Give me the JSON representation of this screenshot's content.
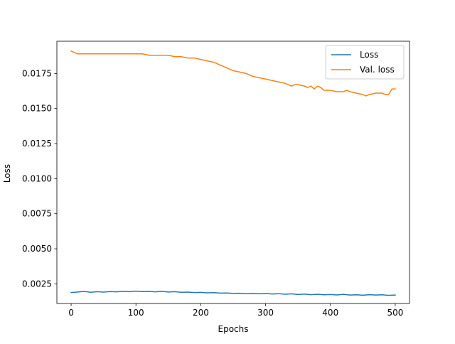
{
  "chart_data": {
    "type": "line",
    "title": "",
    "xlabel": "Epochs",
    "ylabel": "Loss",
    "xlim": [
      -22,
      522
    ],
    "ylim": [
      0.0011,
      0.0198
    ],
    "x_ticks": [
      0,
      100,
      200,
      300,
      400,
      500
    ],
    "x_tick_labels": [
      "0",
      "100",
      "200",
      "300",
      "400",
      "500"
    ],
    "y_ticks": [
      0.0025,
      0.005,
      0.0075,
      0.01,
      0.0125,
      0.015,
      0.0175
    ],
    "y_tick_labels": [
      "0.0025",
      "0.0050",
      "0.0075",
      "0.0100",
      "0.0125",
      "0.0150",
      "0.0175"
    ],
    "grid": false,
    "legend_position": "upper right",
    "series": [
      {
        "name": "Loss",
        "color": "#1f77b4",
        "x": [
          0,
          10,
          20,
          30,
          40,
          50,
          60,
          70,
          80,
          90,
          100,
          110,
          120,
          130,
          140,
          150,
          160,
          170,
          180,
          190,
          200,
          210,
          220,
          230,
          240,
          250,
          260,
          270,
          280,
          290,
          300,
          310,
          320,
          330,
          340,
          350,
          360,
          370,
          380,
          390,
          400,
          410,
          420,
          430,
          440,
          450,
          460,
          470,
          480,
          490,
          500
        ],
        "y": [
          0.00188,
          0.00192,
          0.00196,
          0.0019,
          0.00194,
          0.00191,
          0.00195,
          0.00193,
          0.00197,
          0.00194,
          0.00198,
          0.00195,
          0.00196,
          0.00193,
          0.00197,
          0.00192,
          0.00194,
          0.0019,
          0.00191,
          0.00188,
          0.00189,
          0.00186,
          0.00187,
          0.00184,
          0.00185,
          0.00182,
          0.00183,
          0.0018,
          0.00182,
          0.00179,
          0.00181,
          0.00178,
          0.0018,
          0.00176,
          0.00179,
          0.00174,
          0.00177,
          0.00173,
          0.00176,
          0.00172,
          0.00174,
          0.00171,
          0.00175,
          0.0017,
          0.00172,
          0.00169,
          0.00173,
          0.0017,
          0.00172,
          0.00168,
          0.0017
        ]
      },
      {
        "name": "Val. loss",
        "color": "#ff7f0e",
        "x": [
          0,
          5,
          10,
          20,
          30,
          40,
          50,
          60,
          70,
          80,
          90,
          100,
          110,
          120,
          130,
          140,
          150,
          160,
          170,
          180,
          190,
          200,
          210,
          220,
          230,
          240,
          250,
          260,
          270,
          280,
          290,
          300,
          310,
          320,
          330,
          335,
          340,
          345,
          350,
          360,
          365,
          370,
          375,
          380,
          385,
          390,
          400,
          410,
          420,
          425,
          430,
          440,
          450,
          455,
          460,
          470,
          480,
          485,
          490,
          495,
          500
        ],
        "y": [
          0.0191,
          0.019,
          0.0189,
          0.0189,
          0.0189,
          0.0189,
          0.0189,
          0.0189,
          0.0189,
          0.0189,
          0.0189,
          0.0189,
          0.0189,
          0.0188,
          0.0188,
          0.0188,
          0.0188,
          0.0187,
          0.0187,
          0.0186,
          0.0186,
          0.0185,
          0.0184,
          0.0183,
          0.0181,
          0.0179,
          0.0177,
          0.0176,
          0.0175,
          0.0173,
          0.0172,
          0.0171,
          0.017,
          0.0169,
          0.0168,
          0.0167,
          0.0166,
          0.0167,
          0.0167,
          0.0166,
          0.0165,
          0.0166,
          0.0164,
          0.0166,
          0.0165,
          0.0163,
          0.0163,
          0.0162,
          0.0162,
          0.0163,
          0.0162,
          0.0161,
          0.016,
          0.0159,
          0.016,
          0.0161,
          0.0161,
          0.016,
          0.016,
          0.0164,
          0.0164
        ]
      }
    ]
  }
}
